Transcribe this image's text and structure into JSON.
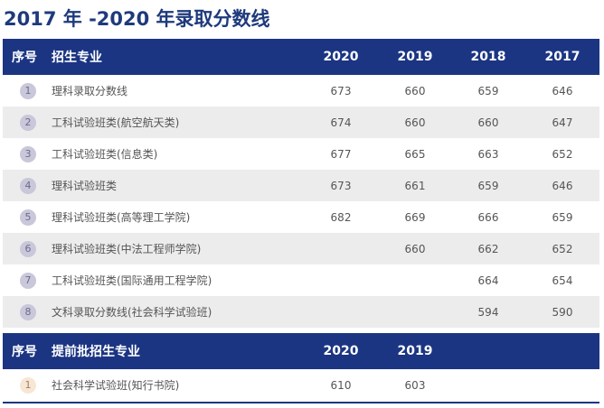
{
  "page_title": "2017 年 -2020 年录取分数线",
  "table1": {
    "header": {
      "no": "序号",
      "major": "招生专业",
      "y1": "2020",
      "y2": "2019",
      "y3": "2018",
      "y4": "2017"
    },
    "rows": [
      {
        "no": "1",
        "major": "理科录取分数线",
        "y1": "673",
        "y2": "660",
        "y3": "659",
        "y4": "646"
      },
      {
        "no": "2",
        "major": "工科试验班类(航空航天类)",
        "y1": "674",
        "y2": "660",
        "y3": "660",
        "y4": "647"
      },
      {
        "no": "3",
        "major": "工科试验班类(信息类)",
        "y1": "677",
        "y2": "665",
        "y3": "663",
        "y4": "652"
      },
      {
        "no": "4",
        "major": "理科试验班类",
        "y1": "673",
        "y2": "661",
        "y3": "659",
        "y4": "646"
      },
      {
        "no": "5",
        "major": "理科试验班类(高等理工学院)",
        "y1": "682",
        "y2": "669",
        "y3": "666",
        "y4": "659"
      },
      {
        "no": "6",
        "major": "理科试验班类(中法工程师学院)",
        "y1": "",
        "y2": "660",
        "y3": "662",
        "y4": "652"
      },
      {
        "no": "7",
        "major": "工科试验班类(国际通用工程学院)",
        "y1": "",
        "y2": "",
        "y3": "664",
        "y4": "654"
      },
      {
        "no": "8",
        "major": "文科录取分数线(社会科学试验班)",
        "y1": "",
        "y2": "",
        "y3": "594",
        "y4": "590"
      }
    ]
  },
  "table2": {
    "header": {
      "no": "序号",
      "major": "提前批招生专业",
      "y1": "2020",
      "y2": "2019"
    },
    "rows": [
      {
        "no": "1",
        "major": "社会科学试验班(知行书院)",
        "y1": "610",
        "y2": "603"
      }
    ]
  }
}
